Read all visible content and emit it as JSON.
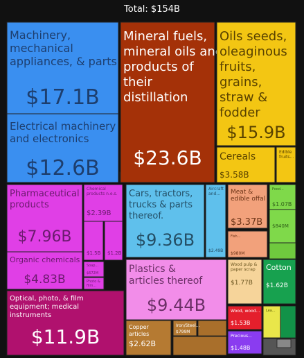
{
  "chart_data": {
    "type": "treemap",
    "title": "Total: $154B",
    "unit": "USD",
    "cells": [
      {
        "label": "Machinery, mechanical appliances, & parts",
        "value": "$17.1B",
        "color": "#3a8ff0"
      },
      {
        "label": "Electrical machinery and electronics",
        "value": "$12.6B",
        "color": "#3a8ff0"
      },
      {
        "label": "Mineral fuels, mineral oils and products of their distillation",
        "value": "$23.6B",
        "color": "#a43108"
      },
      {
        "label": "Oils seeds, oleaginous fruits, grains, straw & fodder",
        "value": "$15.9B",
        "color": "#f3c613"
      },
      {
        "label": "Cereals",
        "value": "$3.58B",
        "color": "#f3c613"
      },
      {
        "label": "Edible fruits...",
        "value": "",
        "color": "#f3c613"
      },
      {
        "label": "Pharmaceutical products",
        "value": "$7.96B",
        "color": "#e03fe6"
      },
      {
        "label": "Chemical products n.e.s.",
        "value": "$2.39B",
        "color": "#e03fe6"
      },
      {
        "label": "Organic chemicals",
        "value": "$4.83B",
        "color": "#e03fe6"
      },
      {
        "label": "",
        "value": "$1.5B",
        "color": "#e03fe6"
      },
      {
        "label": "",
        "value": "$1.2B",
        "color": "#e03fe6"
      },
      {
        "label": "Soap...",
        "value": "$672M",
        "color": "#e03fe6"
      },
      {
        "label": "Photo & film...",
        "value": "",
        "color": "#e03fe6"
      },
      {
        "label": "Cars, tractors, trucks & parts thereof.",
        "value": "$9.36B",
        "color": "#5fc0ec"
      },
      {
        "label": "Aircraft and...",
        "value": "$2.49B",
        "color": "#5fc0ec"
      },
      {
        "label": "Meat & edible offal",
        "value": "$3.37B",
        "color": "#f2a17b"
      },
      {
        "label": "Fish...",
        "value": "$980M",
        "color": "#f2a17b"
      },
      {
        "label": "Food...",
        "value": "$1.07B",
        "color": "#7fd94a"
      },
      {
        "label": "",
        "value": "$840M",
        "color": "#7fd94a"
      },
      {
        "label": "Plastics & articles thereof",
        "value": "$9.44B",
        "color": "#f28de9"
      },
      {
        "label": "Wood pulp & paper scrap",
        "value": "$1.77B",
        "color": "#f6d49a"
      },
      {
        "label": "Cotton",
        "value": "$1.62B",
        "color": "#17a14f"
      },
      {
        "label": "Optical, photo, & film equipment; medical instruments",
        "value": "$11.9B",
        "color": "#b0116e"
      },
      {
        "label": "Copper articles",
        "value": "$2.62B",
        "color": "#b57a32"
      },
      {
        "label": "Iron/Steel...",
        "value": "$799M",
        "color": "#b57a32"
      },
      {
        "label": "Wood, wood...",
        "value": "$1.53B",
        "color": "#e41f2c"
      },
      {
        "label": "Precious...",
        "value": "$1.48B",
        "color": "#8a3cf0"
      },
      {
        "label": "Lea...",
        "value": "",
        "color": "#e9e64a"
      }
    ]
  }
}
